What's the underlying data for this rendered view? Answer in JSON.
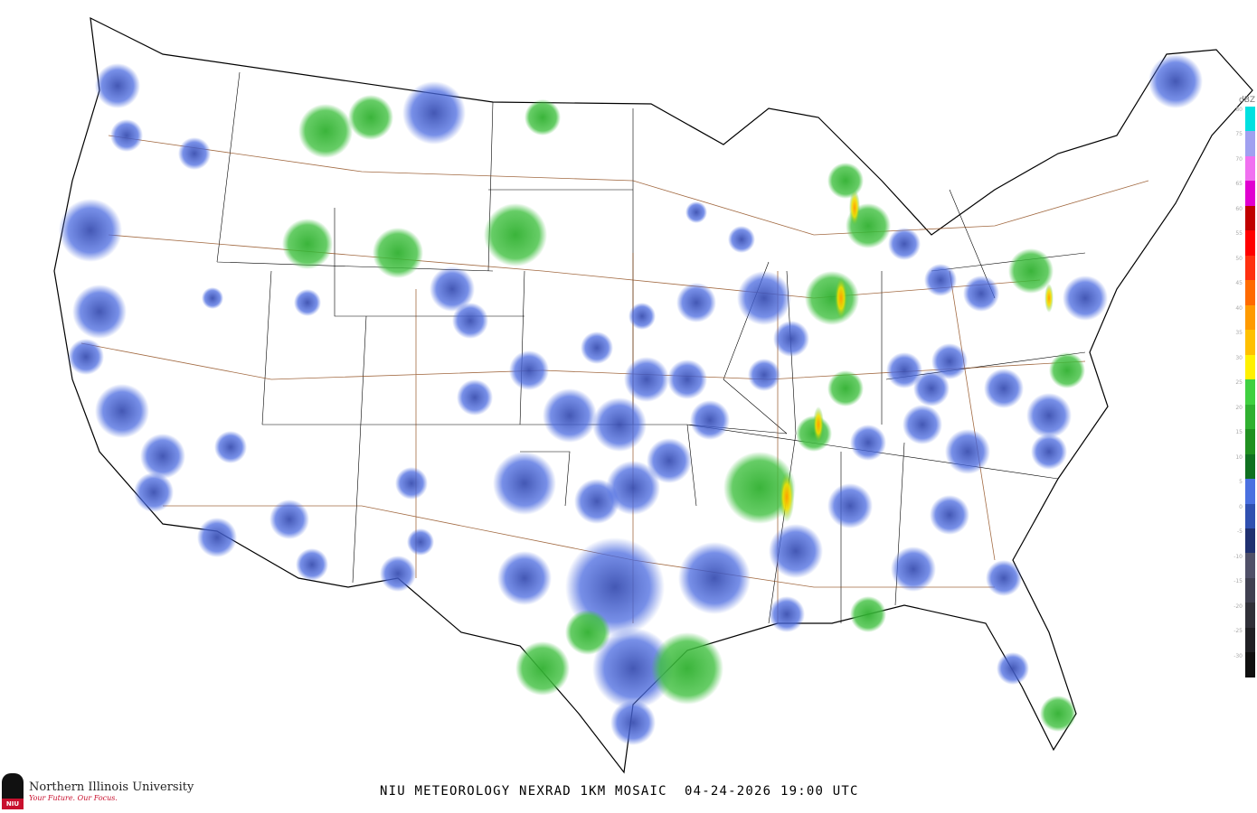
{
  "title": "NIU METEOROLOGY NEXRAD 1KM MOSAIC",
  "date": "04-24-2026",
  "time": "19:00 UTC",
  "logo": {
    "name": "Northern Illinois University",
    "tagline": "Your Future. Our Focus.",
    "abbr": "NIU"
  },
  "legend": {
    "unit": "dBZ",
    "levels": [
      {
        "value": "80",
        "color": "#00e0e0"
      },
      {
        "value": "75",
        "color": "#a0a0f0"
      },
      {
        "value": "70",
        "color": "#f070f0"
      },
      {
        "value": "65",
        "color": "#e000d0"
      },
      {
        "value": "60",
        "color": "#c00000"
      },
      {
        "value": "55",
        "color": "#ff0000"
      },
      {
        "value": "50",
        "color": "#ff3010"
      },
      {
        "value": "45",
        "color": "#ff6a00"
      },
      {
        "value": "40",
        "color": "#ff9a00"
      },
      {
        "value": "35",
        "color": "#ffc000"
      },
      {
        "value": "30",
        "color": "#fff000"
      },
      {
        "value": "25",
        "color": "#40d040"
      },
      {
        "value": "20",
        "color": "#30b030"
      },
      {
        "value": "15",
        "color": "#209020"
      },
      {
        "value": "10",
        "color": "#107020"
      },
      {
        "value": "5",
        "color": "#4a70e0"
      },
      {
        "value": "0",
        "color": "#3050b0"
      },
      {
        "value": "-5",
        "color": "#203070"
      },
      {
        "value": "-10",
        "color": "#505068"
      },
      {
        "value": "-15",
        "color": "#404050"
      },
      {
        "value": "-20",
        "color": "#303038"
      },
      {
        "value": "-25",
        "color": "#202024"
      },
      {
        "value": "-30",
        "color": "#101010"
      }
    ]
  }
}
